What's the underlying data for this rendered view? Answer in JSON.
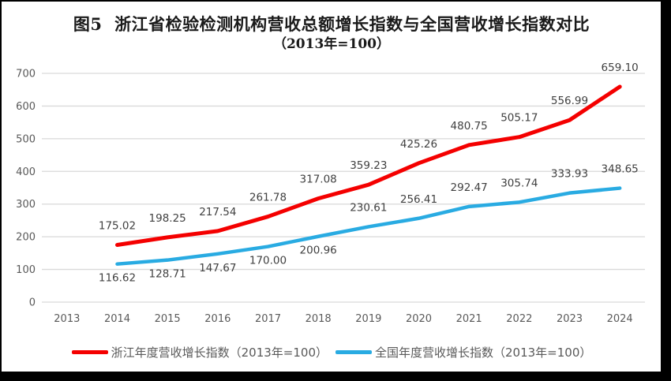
{
  "figure": {
    "title": "图5  浙江省检验检测机构营收总额增长指数与全国营收增长指数对比",
    "subtitle": "（2013年=100）"
  },
  "chart_data": {
    "type": "line",
    "title": "图5  浙江省检验检测机构营收总额增长指数与全国营收增长指数对比",
    "subtitle": "（2013年=100）",
    "categories": [
      "2013",
      "2014",
      "2015",
      "2016",
      "2017",
      "2018",
      "2019",
      "2020",
      "2021",
      "2022",
      "2023",
      "2024"
    ],
    "y_axis": {
      "min": 0,
      "max": 700,
      "step": 100,
      "ticks": [
        "0",
        "100",
        "200",
        "300",
        "400",
        "500",
        "600",
        "700"
      ]
    },
    "grid": true,
    "legend_position": "bottom",
    "data_labels": true,
    "series": [
      {
        "name": "浙江年度营收增长指数（2013年=100）",
        "key": "zhejiang-index",
        "color": "#f40000",
        "stroke_width": 5,
        "values": [
          null,
          175.02,
          198.25,
          217.54,
          261.78,
          317.08,
          359.23,
          425.26,
          480.75,
          505.17,
          556.99,
          659.1
        ],
        "label_side": [
          null,
          "above",
          "above",
          "above",
          "above",
          "above",
          "above",
          "above",
          "above",
          "above",
          "above",
          "above"
        ]
      },
      {
        "name": "全国年度营收增长指数（2013年=100）",
        "key": "national-index",
        "color": "#29abe2",
        "stroke_width": 4.5,
        "values": [
          null,
          116.62,
          128.71,
          147.67,
          170.0,
          200.96,
          230.61,
          256.41,
          292.47,
          305.74,
          333.93,
          348.65
        ],
        "label_side": [
          null,
          "below",
          "below",
          "below",
          "below",
          "below",
          "above",
          "above",
          "above",
          "above",
          "above",
          "above"
        ]
      }
    ],
    "colors": {
      "gridline": "#d9d9d9",
      "axis_text": "#595959",
      "label_text": "#404040",
      "title_text": "#1a1a1a",
      "legend_text": "#595959",
      "background": "#ffffff",
      "frame": "#000000"
    }
  }
}
